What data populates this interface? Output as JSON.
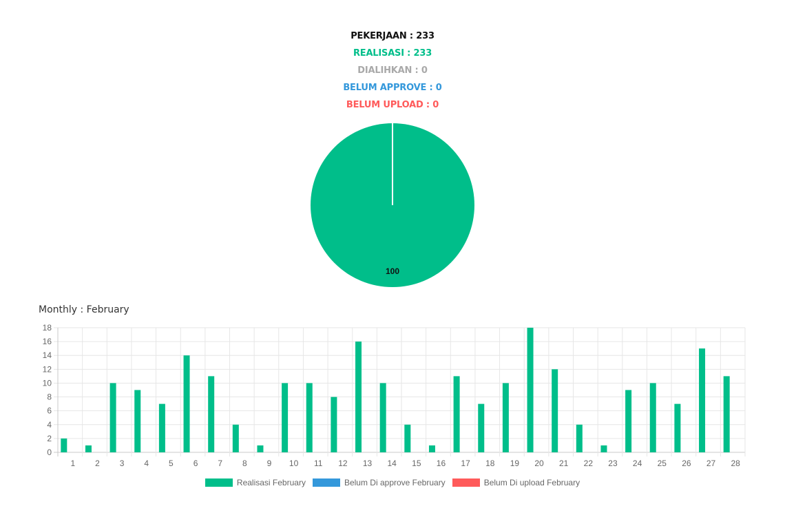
{
  "summary": {
    "pekerjaan": "PEKERJAAN : 233",
    "realisasi": "REALISASI : 233",
    "dialihkan": "DIALIHKAN : 0",
    "belum_approve": "BELUM APPROVE : 0",
    "belum_upload": "BELUM UPLOAD : 0"
  },
  "colors": {
    "black": "#111111",
    "green": "#00be8a",
    "grey": "#a9a9a9",
    "blue": "#3498db",
    "red": "#ff5a5a"
  },
  "monthly_title": "Monthly : February",
  "chart_data": [
    {
      "type": "pie",
      "slices": [
        {
          "name": "Realisasi",
          "value": 100,
          "color": "#00be8a"
        },
        {
          "name": "Belum Di approve",
          "value": 0,
          "color": "#3498db"
        },
        {
          "name": "Belum Di upload",
          "value": 0,
          "color": "#ff5a5a"
        }
      ],
      "data_label": "100"
    },
    {
      "type": "bar",
      "categories": [
        "1",
        "2",
        "3",
        "4",
        "5",
        "6",
        "7",
        "8",
        "9",
        "10",
        "11",
        "12",
        "13",
        "14",
        "15",
        "16",
        "17",
        "18",
        "19",
        "20",
        "21",
        "22",
        "23",
        "24",
        "25",
        "26",
        "27",
        "28"
      ],
      "series": [
        {
          "name": "Realisasi February",
          "color": "#00be8a",
          "values": [
            2,
            1,
            10,
            9,
            7,
            14,
            11,
            4,
            1,
            10,
            10,
            8,
            16,
            10,
            4,
            1,
            11,
            7,
            10,
            18,
            12,
            4,
            1,
            9,
            10,
            7,
            15,
            11
          ]
        },
        {
          "name": "Belum Di approve February",
          "color": "#3498db",
          "values": [
            0,
            0,
            0,
            0,
            0,
            0,
            0,
            0,
            0,
            0,
            0,
            0,
            0,
            0,
            0,
            0,
            0,
            0,
            0,
            0,
            0,
            0,
            0,
            0,
            0,
            0,
            0,
            0
          ]
        },
        {
          "name": "Belum Di upload February",
          "color": "#ff5a5a",
          "values": [
            0,
            0,
            0,
            0,
            0,
            0,
            0,
            0,
            0,
            0,
            0,
            0,
            0,
            0,
            0,
            0,
            0,
            0,
            0,
            0,
            0,
            0,
            0,
            0,
            0,
            0,
            0,
            0
          ]
        }
      ],
      "ylim": [
        0,
        18
      ],
      "yticks": [
        "0",
        "2",
        "4",
        "6",
        "8",
        "10",
        "12",
        "14",
        "16",
        "18"
      ],
      "grid": true,
      "legend": "bottom"
    }
  ]
}
